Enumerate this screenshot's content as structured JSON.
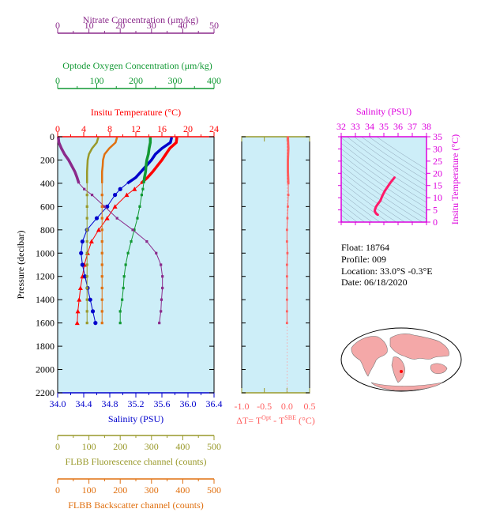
{
  "colors": {
    "nitrate": "#8b2a8b",
    "oxygen": "#119933",
    "temperature": "#ff0000",
    "salinity": "#0000cc",
    "fluorescence": "#99992a",
    "backscatter": "#e07010",
    "delta_t": "#ff6060",
    "ts_axis": "#dd00dd",
    "plot_bg": "#cdeef8"
  },
  "info": {
    "float_label": "Float:  18764",
    "profile_label": "Profile:  009",
    "location_label": "Location:  33.0°S  -0.3°E",
    "date_label": "Date:  06/18/2020"
  },
  "chart_data": [
    {
      "type": "line",
      "title": "",
      "ylabel": "Pressure (decibar)",
      "ylim": [
        0,
        2200
      ],
      "y_reversed": true,
      "y_ticks": [
        "0",
        "200",
        "400",
        "600",
        "800",
        "1000",
        "1200",
        "1400",
        "1600",
        "1800",
        "2000",
        "2200"
      ],
      "axes": [
        {
          "key": "nitrate",
          "label": "Nitrate Concentration (μm/kg)",
          "range": [
            0,
            50
          ],
          "ticks": [
            "0",
            "10",
            "20",
            "30",
            "40",
            "50"
          ]
        },
        {
          "key": "oxygen",
          "label": "Optode Oxygen Concentration (μm/kg)",
          "range": [
            0,
            400
          ],
          "ticks": [
            "0",
            "100",
            "200",
            "300",
            "400"
          ]
        },
        {
          "key": "temperature",
          "label": "Insitu Temperature (°C)",
          "range": [
            0,
            24
          ],
          "ticks": [
            "0",
            "4",
            "8",
            "12",
            "16",
            "20",
            "24"
          ]
        },
        {
          "key": "salinity",
          "label": "Salinity (PSU)",
          "range": [
            34.0,
            36.4
          ],
          "ticks": [
            "34.0",
            "34.4",
            "34.8",
            "35.2",
            "35.6",
            "36.0",
            "36.4"
          ]
        },
        {
          "key": "fluorescence",
          "label": "FLBB Fluorescence channel (counts)",
          "range": [
            0,
            500
          ],
          "ticks": [
            "0",
            "100",
            "200",
            "300",
            "400",
            "500"
          ]
        },
        {
          "key": "backscatter",
          "label": "FLBB Backscatter channel (counts)",
          "range": [
            0,
            500
          ],
          "ticks": [
            "0",
            "100",
            "200",
            "300",
            "400",
            "500"
          ]
        }
      ],
      "series": [
        {
          "key": "temperature",
          "pressure": [
            5,
            50,
            100,
            150,
            200,
            250,
            300,
            350,
            400,
            450,
            500,
            600,
            700,
            800,
            900,
            1000,
            1100,
            1200,
            1300,
            1400,
            1500,
            1600
          ],
          "values": [
            18.3,
            18.2,
            17.2,
            16.6,
            16.0,
            15.3,
            14.6,
            13.8,
            12.8,
            11.8,
            10.6,
            8.8,
            7.6,
            6.3,
            5.2,
            4.6,
            4.1,
            3.8,
            3.5,
            3.3,
            3.1,
            3.0
          ]
        },
        {
          "key": "salinity",
          "pressure": [
            5,
            50,
            100,
            150,
            200,
            250,
            300,
            350,
            400,
            450,
            500,
            600,
            700,
            800,
            900,
            1000,
            1100,
            1200,
            1300,
            1400,
            1500,
            1600
          ],
          "values": [
            35.75,
            35.73,
            35.6,
            35.5,
            35.44,
            35.36,
            35.28,
            35.2,
            35.07,
            34.96,
            34.88,
            34.76,
            34.6,
            34.45,
            34.38,
            34.36,
            34.38,
            34.42,
            34.46,
            34.5,
            34.54,
            34.58
          ]
        },
        {
          "key": "oxygen",
          "pressure": [
            5,
            50,
            100,
            150,
            200,
            250,
            300,
            350,
            400,
            450,
            500,
            600,
            700,
            800,
            900,
            1000,
            1100,
            1200,
            1300,
            1400,
            1500,
            1600
          ],
          "values": [
            237,
            237,
            234,
            232,
            228,
            226,
            225,
            222,
            220,
            218,
            215,
            210,
            204,
            196,
            188,
            180,
            174,
            170,
            168,
            165,
            160,
            160
          ]
        },
        {
          "key": "nitrate",
          "pressure": [
            5,
            50,
            100,
            150,
            200,
            250,
            300,
            350,
            400,
            450,
            500,
            600,
            700,
            800,
            900,
            1000,
            1100,
            1200,
            1300,
            1400,
            1500,
            1600
          ],
          "values": [
            0.2,
            0.4,
            1.2,
            2.2,
            3.5,
            4.5,
            5.5,
            6.2,
            6.8,
            8.5,
            11,
            15,
            19,
            24,
            28.5,
            31.5,
            33,
            33.5,
            33.5,
            33.2,
            33,
            32.5
          ]
        },
        {
          "key": "fluorescence",
          "pressure": [
            5,
            50,
            100,
            150,
            200,
            250,
            300,
            350,
            400,
            500,
            600,
            700,
            800,
            900,
            1000,
            1100,
            1200,
            1300,
            1400,
            1500,
            1600
          ],
          "values": [
            130,
            125,
            110,
            100,
            96,
            95,
            94,
            94,
            94,
            94,
            94,
            94,
            94,
            94,
            94,
            94,
            94,
            94,
            94,
            94,
            94
          ]
        },
        {
          "key": "backscatter",
          "pressure": [
            5,
            50,
            100,
            150,
            200,
            250,
            300,
            350,
            400,
            500,
            600,
            700,
            800,
            900,
            1000,
            1100,
            1200,
            1300,
            1400,
            1500,
            1600
          ],
          "values": [
            190,
            185,
            165,
            150,
            145,
            144,
            142,
            142,
            142,
            142,
            142,
            142,
            142,
            142,
            142,
            142,
            142,
            142,
            142,
            142,
            142
          ]
        }
      ]
    },
    {
      "type": "line",
      "title": "",
      "xlabel": "ΔT= T^Opt - T^SBE (°C)",
      "xlim": [
        -1.0,
        0.5
      ],
      "x_ticks": [
        "-1.0",
        "-0.5",
        "0.0",
        "0.5"
      ],
      "ylim": [
        0,
        2200
      ],
      "series": [
        {
          "key": "delta_t",
          "pressure": [
            5,
            100,
            200,
            300,
            400,
            500,
            600,
            700,
            800,
            900,
            1000,
            1100,
            1200,
            1300,
            1400,
            1500,
            1600
          ],
          "values": [
            0.02,
            0.03,
            0.02,
            0.02,
            0.03,
            0.03,
            0.02,
            0.01,
            0.0,
            0.0,
            0.01,
            0.0,
            0.0,
            0.0,
            0.0,
            0.0,
            0.0
          ]
        }
      ]
    },
    {
      "type": "scatter",
      "title": "",
      "xlabel": "Salinity (PSU)",
      "ylabel": "Insitu Temperature (°C)",
      "xlim": [
        32,
        38
      ],
      "ylim": [
        0,
        35
      ],
      "x_ticks": [
        "32",
        "33",
        "34",
        "35",
        "36",
        "37",
        "38"
      ],
      "y_ticks": [
        "0",
        "5",
        "10",
        "15",
        "20",
        "25",
        "30",
        "35"
      ],
      "series": [
        {
          "key": "ts",
          "x": [
            35.75,
            35.6,
            35.44,
            35.28,
            35.07,
            34.88,
            34.76,
            34.6,
            34.45,
            34.38,
            34.36,
            34.4,
            34.46,
            34.54,
            34.58
          ],
          "y": [
            18.3,
            17.2,
            16.0,
            14.6,
            12.8,
            10.6,
            8.8,
            7.6,
            6.3,
            5.2,
            4.6,
            4.0,
            3.5,
            3.1,
            3.0
          ]
        }
      ]
    }
  ]
}
